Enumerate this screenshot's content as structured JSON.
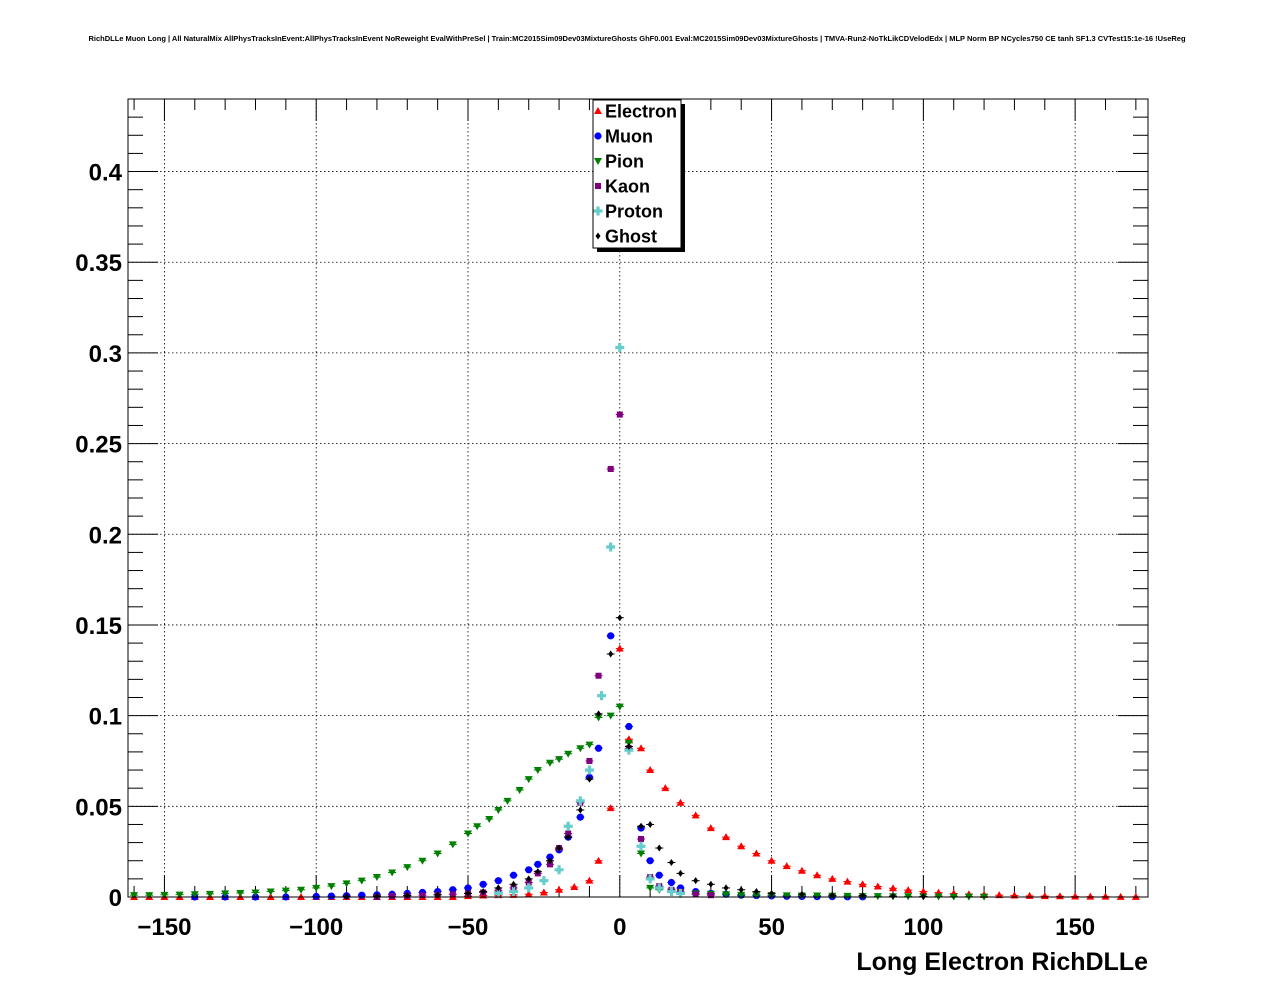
{
  "chart_data": {
    "type": "scatter",
    "title": "RichDLLe Muon Long | All NaturalMix AllPhysTracksInEvent:AllPhysTracksInEvent NoReweight EvalWithPreSel | Train:MC2015Sim09Dev03MixtureGhosts GhF0.001 Eval:MC2015Sim09Dev03MixtureGhosts | TMVA-Run2-NoTkLikCDVelodEdx | MLP Norm BP NCycles750 CE tanh SF1.3 CVTest15:1e-16 !UseReg",
    "xlabel": "Long Electron RichDLLe",
    "ylabel": "",
    "xlim": [
      -162,
      174
    ],
    "ylim": [
      0,
      0.44
    ],
    "x_ticks": [
      -150,
      -100,
      -50,
      0,
      50,
      100,
      150
    ],
    "x_tick_labels": [
      "−150",
      "−100",
      "−50",
      "0",
      "50",
      "100",
      "150"
    ],
    "y_ticks": [
      0,
      0.05,
      0.1,
      0.15,
      0.2,
      0.25,
      0.3,
      0.35,
      0.4
    ],
    "y_tick_labels": [
      "0",
      "0.05",
      "0.1",
      "0.15",
      "0.2",
      "0.25",
      "0.3",
      "0.35",
      "0.4"
    ],
    "grid": true,
    "legend_position": "top-center",
    "series": [
      {
        "name": "Electron",
        "color": "#ff0000",
        "marker": "triangle-up",
        "x": [
          -160,
          -155,
          -150,
          -145,
          -140,
          -135,
          -130,
          -125,
          -120,
          -115,
          -110,
          -105,
          -100,
          -95,
          -90,
          -85,
          -80,
          -75,
          -70,
          -65,
          -60,
          -55,
          -50,
          -45,
          -40,
          -35,
          -30,
          -25,
          -20,
          -15,
          -10,
          -7,
          -3,
          0,
          3,
          7,
          10,
          15,
          20,
          25,
          30,
          35,
          40,
          45,
          50,
          55,
          60,
          65,
          70,
          75,
          80,
          85,
          90,
          95,
          100,
          105,
          110,
          115,
          120,
          125,
          130,
          135,
          140,
          145,
          150,
          155,
          160,
          165,
          170
        ],
        "y": [
          0,
          0,
          0,
          0,
          0,
          0,
          0,
          0,
          0,
          0,
          0,
          0,
          0,
          0,
          0,
          0,
          0,
          0,
          0,
          0,
          0,
          0,
          0.0005,
          0.0008,
          0.001,
          0.0012,
          0.0015,
          0.0025,
          0.004,
          0.0055,
          0.009,
          0.02,
          0.049,
          0.137,
          0.087,
          0.082,
          0.07,
          0.06,
          0.052,
          0.045,
          0.038,
          0.033,
          0.028,
          0.024,
          0.02,
          0.017,
          0.0145,
          0.012,
          0.01,
          0.0085,
          0.007,
          0.0058,
          0.0048,
          0.0038,
          0.003,
          0.0024,
          0.0019,
          0.0015,
          0.0012,
          0.001,
          0.0008,
          0.0006,
          0.0005,
          0.0004,
          0.0003,
          0.0002,
          0.0002,
          0.0001,
          0.0001
        ]
      },
      {
        "name": "Muon",
        "color": "#0000ff",
        "marker": "circle",
        "x": [
          -140,
          -130,
          -120,
          -110,
          -100,
          -95,
          -90,
          -85,
          -80,
          -75,
          -70,
          -65,
          -60,
          -55,
          -50,
          -45,
          -40,
          -35,
          -30,
          -27,
          -23,
          -20,
          -17,
          -13,
          -10,
          -7,
          -3,
          3,
          7,
          10,
          13,
          17,
          20,
          25,
          30,
          35,
          40,
          45,
          50,
          55,
          60,
          65,
          70,
          75,
          80
        ],
        "y": [
          0,
          0,
          0,
          0,
          0.0003,
          0.0005,
          0.0007,
          0.001,
          0.0012,
          0.0015,
          0.002,
          0.0025,
          0.003,
          0.004,
          0.005,
          0.007,
          0.009,
          0.012,
          0.015,
          0.018,
          0.022,
          0.026,
          0.033,
          0.044,
          0.066,
          0.082,
          0.144,
          0.094,
          0.038,
          0.02,
          0.012,
          0.008,
          0.005,
          0.003,
          0.002,
          0.0015,
          0.001,
          0.0008,
          0.0006,
          0.0004,
          0.0003,
          0.0002,
          0.0002,
          0.0001,
          0.0001
        ]
      },
      {
        "name": "Pion",
        "color": "#008000",
        "marker": "triangle-down",
        "x": [
          -160,
          -155,
          -150,
          -145,
          -140,
          -135,
          -130,
          -125,
          -120,
          -115,
          -110,
          -105,
          -100,
          -95,
          -90,
          -85,
          -80,
          -75,
          -70,
          -65,
          -60,
          -55,
          -50,
          -47,
          -43,
          -40,
          -37,
          -33,
          -30,
          -27,
          -23,
          -20,
          -17,
          -13,
          -10,
          -7,
          -3,
          0,
          3,
          7,
          10,
          13,
          17,
          20,
          25,
          30,
          35,
          40,
          45,
          50,
          55,
          60,
          65,
          70,
          75,
          80,
          85,
          90,
          95,
          100,
          105,
          110,
          115,
          120
        ],
        "y": [
          0.001,
          0.001,
          0.0012,
          0.0013,
          0.0015,
          0.0017,
          0.002,
          0.0022,
          0.0025,
          0.003,
          0.0035,
          0.004,
          0.005,
          0.006,
          0.0075,
          0.009,
          0.011,
          0.0135,
          0.0165,
          0.02,
          0.024,
          0.029,
          0.035,
          0.039,
          0.043,
          0.048,
          0.053,
          0.059,
          0.065,
          0.07,
          0.074,
          0.076,
          0.079,
          0.082,
          0.084,
          0.099,
          0.1,
          0.105,
          0.085,
          0.024,
          0.005,
          0.004,
          0.003,
          0.0025,
          0.002,
          0.0018,
          0.0015,
          0.0012,
          0.001,
          0.001,
          0.0009,
          0.0008,
          0.0008,
          0.0007,
          0.0006,
          0.0005,
          0.0005,
          0.0004,
          0.0004,
          0.0003,
          0.0003,
          0.0002,
          0.0002,
          0.0002
        ]
      },
      {
        "name": "Kaon",
        "color": "#800080",
        "marker": "square",
        "x": [
          -80,
          -75,
          -70,
          -65,
          -60,
          -55,
          -50,
          -45,
          -40,
          -35,
          -30,
          -27,
          -23,
          -20,
          -17,
          -13,
          -10,
          -7,
          -3,
          0,
          3,
          7,
          10,
          13,
          17,
          20,
          25,
          30
        ],
        "y": [
          0,
          0.0005,
          0.0007,
          0.001,
          0.0012,
          0.0015,
          0.002,
          0.0025,
          0.0035,
          0.005,
          0.008,
          0.013,
          0.018,
          0.027,
          0.035,
          0.052,
          0.075,
          0.122,
          0.236,
          0.266,
          0.082,
          0.032,
          0.011,
          0.006,
          0.004,
          0.003,
          0.0015,
          0.001
        ]
      },
      {
        "name": "Proton",
        "color": "#66cccc",
        "marker": "cross",
        "x": [
          -40,
          -35,
          -30,
          -25,
          -20,
          -17,
          -13,
          -10,
          -6,
          -3,
          0,
          3,
          7,
          10,
          13,
          17,
          20
        ],
        "y": [
          0.002,
          0.003,
          0.005,
          0.009,
          0.015,
          0.039,
          0.053,
          0.07,
          0.111,
          0.193,
          0.303,
          0.081,
          0.028,
          0.01,
          0.005,
          0.003,
          0.002
        ]
      },
      {
        "name": "Ghost",
        "color": "#000000",
        "marker": "diamond",
        "x": [
          -90,
          -80,
          -70,
          -60,
          -50,
          -45,
          -40,
          -35,
          -30,
          -27,
          -23,
          -20,
          -17,
          -13,
          -10,
          -7,
          -3,
          0,
          3,
          7,
          10,
          13,
          17,
          20,
          25,
          30,
          35,
          40,
          45,
          50,
          60,
          70,
          80,
          90,
          100
        ],
        "y": [
          0.0003,
          0.0005,
          0.0008,
          0.0012,
          0.002,
          0.003,
          0.005,
          0.007,
          0.01,
          0.014,
          0.02,
          0.027,
          0.033,
          0.048,
          0.065,
          0.101,
          0.134,
          0.154,
          0.083,
          0.039,
          0.04,
          0.027,
          0.019,
          0.013,
          0.009,
          0.007,
          0.005,
          0.004,
          0.003,
          0.002,
          0.0015,
          0.001,
          0.0008,
          0.0005,
          0.0003
        ]
      }
    ]
  }
}
